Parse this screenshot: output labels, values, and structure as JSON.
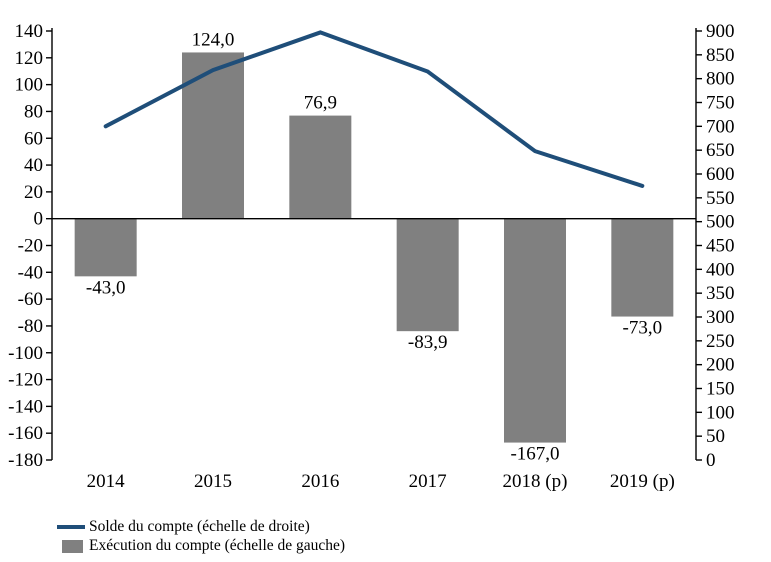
{
  "chart_data": {
    "type": "combo-bar-line",
    "title": "",
    "categories": [
      "2014",
      "2015",
      "2016",
      "2017",
      "2018 (p)",
      "2019 (p)"
    ],
    "series": [
      {
        "name": "Exécution du compte (échelle de gauche)",
        "type": "bar",
        "axis": "left",
        "color": "#808080",
        "values": [
          -43.0,
          124.0,
          76.9,
          -83.9,
          -167.0,
          -73.0
        ],
        "data_labels": [
          "-43,0",
          "124,0",
          "76,9",
          "-83,9",
          "-167,0",
          "-73,0"
        ]
      },
      {
        "name": "Solde du compte (échelle de droite)",
        "type": "line",
        "axis": "right",
        "color": "#1F4E79",
        "values": [
          700,
          818,
          897,
          815,
          648,
          575
        ]
      }
    ],
    "left_axis": {
      "min": -180,
      "max": 140,
      "step": 20,
      "tick_labels": [
        "140",
        "120",
        "100",
        "80",
        "60",
        "40",
        "20",
        "0",
        "-20",
        "-40",
        "-60",
        "-80",
        "-100",
        "-120",
        "-140",
        "-160",
        "-180"
      ]
    },
    "right_axis": {
      "min": 0,
      "max": 900,
      "step": 50,
      "tick_labels": [
        "900",
        "850",
        "800",
        "750",
        "700",
        "650",
        "600",
        "550",
        "500",
        "450",
        "400",
        "350",
        "300",
        "250",
        "200",
        "150",
        "100",
        "50",
        "0"
      ]
    },
    "grid": false,
    "legend_position": "bottom-left"
  },
  "legend": {
    "items": [
      {
        "swatch": "line",
        "color": "#1F4E79",
        "label": "Solde du compte (échelle de droite)"
      },
      {
        "swatch": "square",
        "color": "#808080",
        "label": "Exécution du compte (échelle de gauche)"
      }
    ]
  },
  "colors": {
    "bar": "#808080",
    "line": "#1F4E79",
    "axis": "#000000",
    "text": "#000000",
    "background": "#FFFFFF"
  }
}
